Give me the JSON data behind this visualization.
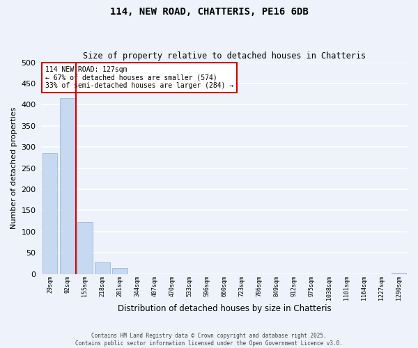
{
  "title_line1": "114, NEW ROAD, CHATTERIS, PE16 6DB",
  "title_line2": "Size of property relative to detached houses in Chatteris",
  "xlabel": "Distribution of detached houses by size in Chatteris",
  "ylabel": "Number of detached properties",
  "bar_labels": [
    "29sqm",
    "92sqm",
    "155sqm",
    "218sqm",
    "281sqm",
    "344sqm",
    "407sqm",
    "470sqm",
    "533sqm",
    "596sqm",
    "660sqm",
    "723sqm",
    "786sqm",
    "849sqm",
    "912sqm",
    "975sqm",
    "1038sqm",
    "1101sqm",
    "1164sqm",
    "1227sqm",
    "1290sqm"
  ],
  "bar_values": [
    285,
    415,
    123,
    28,
    15,
    0,
    0,
    0,
    0,
    0,
    0,
    0,
    0,
    0,
    0,
    0,
    0,
    0,
    0,
    0,
    2
  ],
  "bar_color": "#c6d9f1",
  "bar_edge_color": "#8fb0d3",
  "vline_color": "#cc0000",
  "annotation_text": "114 NEW ROAD: 127sqm\n← 67% of detached houses are smaller (574)\n33% of semi-detached houses are larger (284) →",
  "annotation_box_color": "#ffffff",
  "annotation_box_edge_color": "#cc0000",
  "ylim": [
    0,
    500
  ],
  "yticks": [
    0,
    50,
    100,
    150,
    200,
    250,
    300,
    350,
    400,
    450,
    500
  ],
  "bg_color": "#edf2fb",
  "plot_bg_color": "#edf2fb",
  "grid_color": "#ffffff",
  "footer_line1": "Contains HM Land Registry data © Crown copyright and database right 2025.",
  "footer_line2": "Contains public sector information licensed under the Open Government Licence v3.0."
}
